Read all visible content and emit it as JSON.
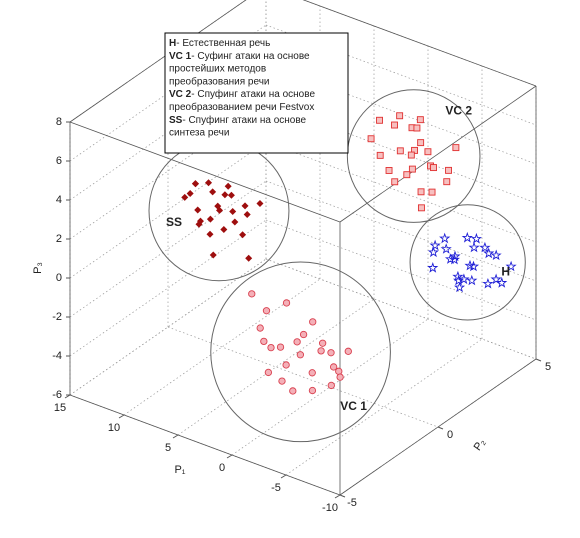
{
  "chart_data": {
    "type": "scatter3d",
    "xlabel": "P₁",
    "ylabel": "P₂",
    "zlabel": "P₃",
    "xlim": [
      -10,
      15
    ],
    "ylim": [
      -5,
      5
    ],
    "zlim": [
      -6,
      8
    ],
    "xticks": [
      -10,
      -5,
      0,
      5,
      10,
      15
    ],
    "yticks": [
      -5,
      0,
      5
    ],
    "zticks": [
      -6,
      -4,
      -2,
      0,
      2,
      4,
      6,
      8
    ],
    "grid": true,
    "series": [
      {
        "name": "H",
        "description": [
          "- Естественная речь"
        ],
        "color": "#1f1fd6",
        "marker": "star",
        "x": [
          -5.7,
          -3.2,
          -8.1,
          -4.5,
          -6.9,
          -2.8,
          -7.4,
          -5.1,
          -3.9,
          -6.3,
          -8.6,
          -4.8,
          -7.0,
          -2.5,
          -5.9,
          -6.6,
          -4.1,
          -7.8,
          -3.5,
          -5.3,
          -6.0,
          -4.4,
          -8.3,
          -3.0,
          -5.5
        ],
        "y": [
          4.0,
          3.6,
          4.3,
          3.9,
          4.1,
          3.7,
          4.4,
          3.8,
          4.2,
          4.0,
          4.5,
          3.5,
          4.2,
          3.9,
          4.1,
          3.6,
          4.3,
          3.8,
          4.0,
          4.4,
          3.7,
          4.1,
          3.9,
          4.2,
          3.8
        ],
        "z": [
          -1.4,
          -0.6,
          -2.0,
          -1.1,
          -0.3,
          -1.9,
          -0.8,
          -2.5,
          -1.6,
          0.1,
          -1.2,
          -0.9,
          -2.2,
          -1.3,
          -0.5,
          -1.7,
          -2.7,
          -0.2,
          -1.0,
          -1.8,
          0.3,
          -2.3,
          -1.5,
          -0.7,
          -2.0
        ]
      },
      {
        "name": "VC 1",
        "description": [
          "- Суфинг атаки на основе",
          "простейших методов",
          "преобразования речи"
        ],
        "color": "#d9404f",
        "marker": "circle",
        "x": [
          -2.7,
          0.8,
          -5.9,
          -1.2,
          -4.0,
          1.8,
          -3.3,
          -6.8,
          0.2,
          -2.0,
          -4.8,
          -0.5,
          -7.5,
          -3.8,
          1.2,
          -1.6,
          -5.2,
          -2.4,
          -0.1,
          -6.2,
          -3.0,
          0.5,
          -4.4,
          -1.0,
          -5.6
        ],
        "y": [
          -3.0,
          -2.8,
          -3.2,
          -2.9,
          -3.1,
          -3.0,
          -2.7,
          -3.3,
          -2.9,
          -3.0,
          -3.1,
          -2.8,
          -3.2,
          -3.0,
          -2.9,
          -3.1,
          -2.8,
          -3.0,
          -3.2,
          -2.9,
          -3.0,
          -3.1,
          -2.8,
          -3.0,
          -2.9
        ],
        "z": [
          -1.7,
          -0.3,
          -0.8,
          -2.6,
          -3.2,
          0.5,
          -0.1,
          -1.5,
          -2.0,
          -3.7,
          -1.0,
          -1.9,
          -0.4,
          -2.4,
          -1.2,
          0.8,
          -2.9,
          -1.1,
          -3.0,
          -2.2,
          -0.6,
          -1.6,
          -0.9,
          -3.4,
          -1.8
        ]
      },
      {
        "name": "VC 2",
        "description": [
          "- Спуфинг атаки на основе",
          "преобразованием речи Festvox"
        ],
        "color": "#e03030",
        "marker": "square",
        "x": [
          -4.2,
          -1.5,
          -6.8,
          -3.0,
          -5.5,
          -2.2,
          -7.3,
          -4.8,
          -0.9,
          -3.6,
          -6.0,
          -2.7,
          -5.1,
          -4.0,
          -1.8,
          -6.5,
          -3.3,
          -4.6,
          -2.0,
          -5.8,
          -3.9,
          -7.0,
          -1.2,
          -4.4,
          -5.2
        ],
        "y": [
          2.0,
          1.7,
          2.3,
          1.9,
          2.1,
          1.8,
          2.4,
          2.0,
          1.6,
          2.2,
          1.9,
          2.1,
          1.8,
          2.0,
          2.3,
          1.7,
          2.1,
          1.9,
          2.2,
          1.8,
          2.0,
          2.1,
          1.9,
          2.2,
          1.8
        ],
        "z": [
          5.6,
          6.8,
          4.9,
          7.2,
          5.0,
          4.3,
          6.1,
          3.6,
          5.8,
          6.5,
          3.9,
          5.2,
          7.5,
          4.6,
          6.2,
          5.4,
          4.1,
          6.9,
          3.4,
          6.0,
          5.3,
          4.5,
          4.8,
          5.9,
          3.0
        ]
      },
      {
        "name": "SS",
        "description": [
          "- Спуфинг атаки на основе",
          "синтеза речи"
        ],
        "color": "#9e0e0e",
        "marker": "diamond",
        "x": [
          6.6,
          9.2,
          4.1,
          7.8,
          5.2,
          8.5,
          3.4,
          6.9,
          10.0,
          5.8,
          7.3,
          4.6,
          8.0,
          6.1,
          9.5,
          5.0,
          7.6,
          3.9,
          6.4,
          8.8,
          5.5,
          7.0,
          4.4,
          6.2,
          9.0
        ],
        "y": [
          -2.0,
          -1.8,
          -2.2,
          -1.9,
          -2.1,
          -2.0,
          -1.7,
          -2.3,
          -1.9,
          -2.0,
          -2.1,
          -1.8,
          -2.2,
          -2.0,
          -1.9,
          -2.1,
          -1.8,
          -2.0,
          -2.2,
          -1.9,
          -2.0,
          -2.1,
          -1.8,
          -2.0,
          -1.9
        ],
        "z": [
          3.1,
          3.8,
          2.5,
          4.2,
          3.4,
          2.0,
          3.9,
          2.8,
          3.0,
          4.5,
          1.8,
          3.6,
          2.4,
          4.0,
          3.3,
          2.9,
          3.7,
          1.2,
          3.5,
          2.6,
          4.1,
          0.8,
          3.2,
          2.2,
          3.9
        ]
      }
    ]
  }
}
